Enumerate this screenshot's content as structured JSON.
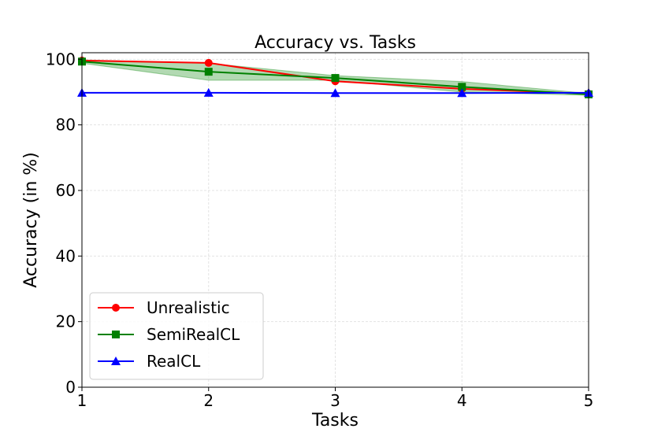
{
  "chart_data": {
    "type": "line",
    "title": "Accuracy vs. Tasks",
    "xlabel": "Tasks",
    "ylabel": "Accuracy (in %)",
    "x": [
      1,
      2,
      3,
      4,
      5
    ],
    "xlim": [
      1,
      5
    ],
    "ylim": [
      0,
      102
    ],
    "xticks": [
      "1",
      "2",
      "3",
      "4",
      "5"
    ],
    "yticks": [
      "0",
      "20",
      "40",
      "60",
      "80",
      "100"
    ],
    "grid": true,
    "legend_position": "lower-left",
    "series": [
      {
        "name": "Unrealistic",
        "color": "#ff0000",
        "marker": "circle",
        "values": [
          99.6,
          98.9,
          93.3,
          91.0,
          89.5
        ]
      },
      {
        "name": "SemiRealCL",
        "color": "#008000",
        "marker": "square",
        "values": [
          99.3,
          96.2,
          94.3,
          91.6,
          89.3
        ],
        "band_lower": [
          98.8,
          93.6,
          93.6,
          90.0,
          89.0
        ],
        "band_upper": [
          99.8,
          98.8,
          95.0,
          93.2,
          89.6
        ]
      },
      {
        "name": "RealCL",
        "color": "#0000ff",
        "marker": "triangle",
        "values": [
          89.8,
          89.8,
          89.7,
          89.7,
          89.8
        ]
      }
    ]
  }
}
